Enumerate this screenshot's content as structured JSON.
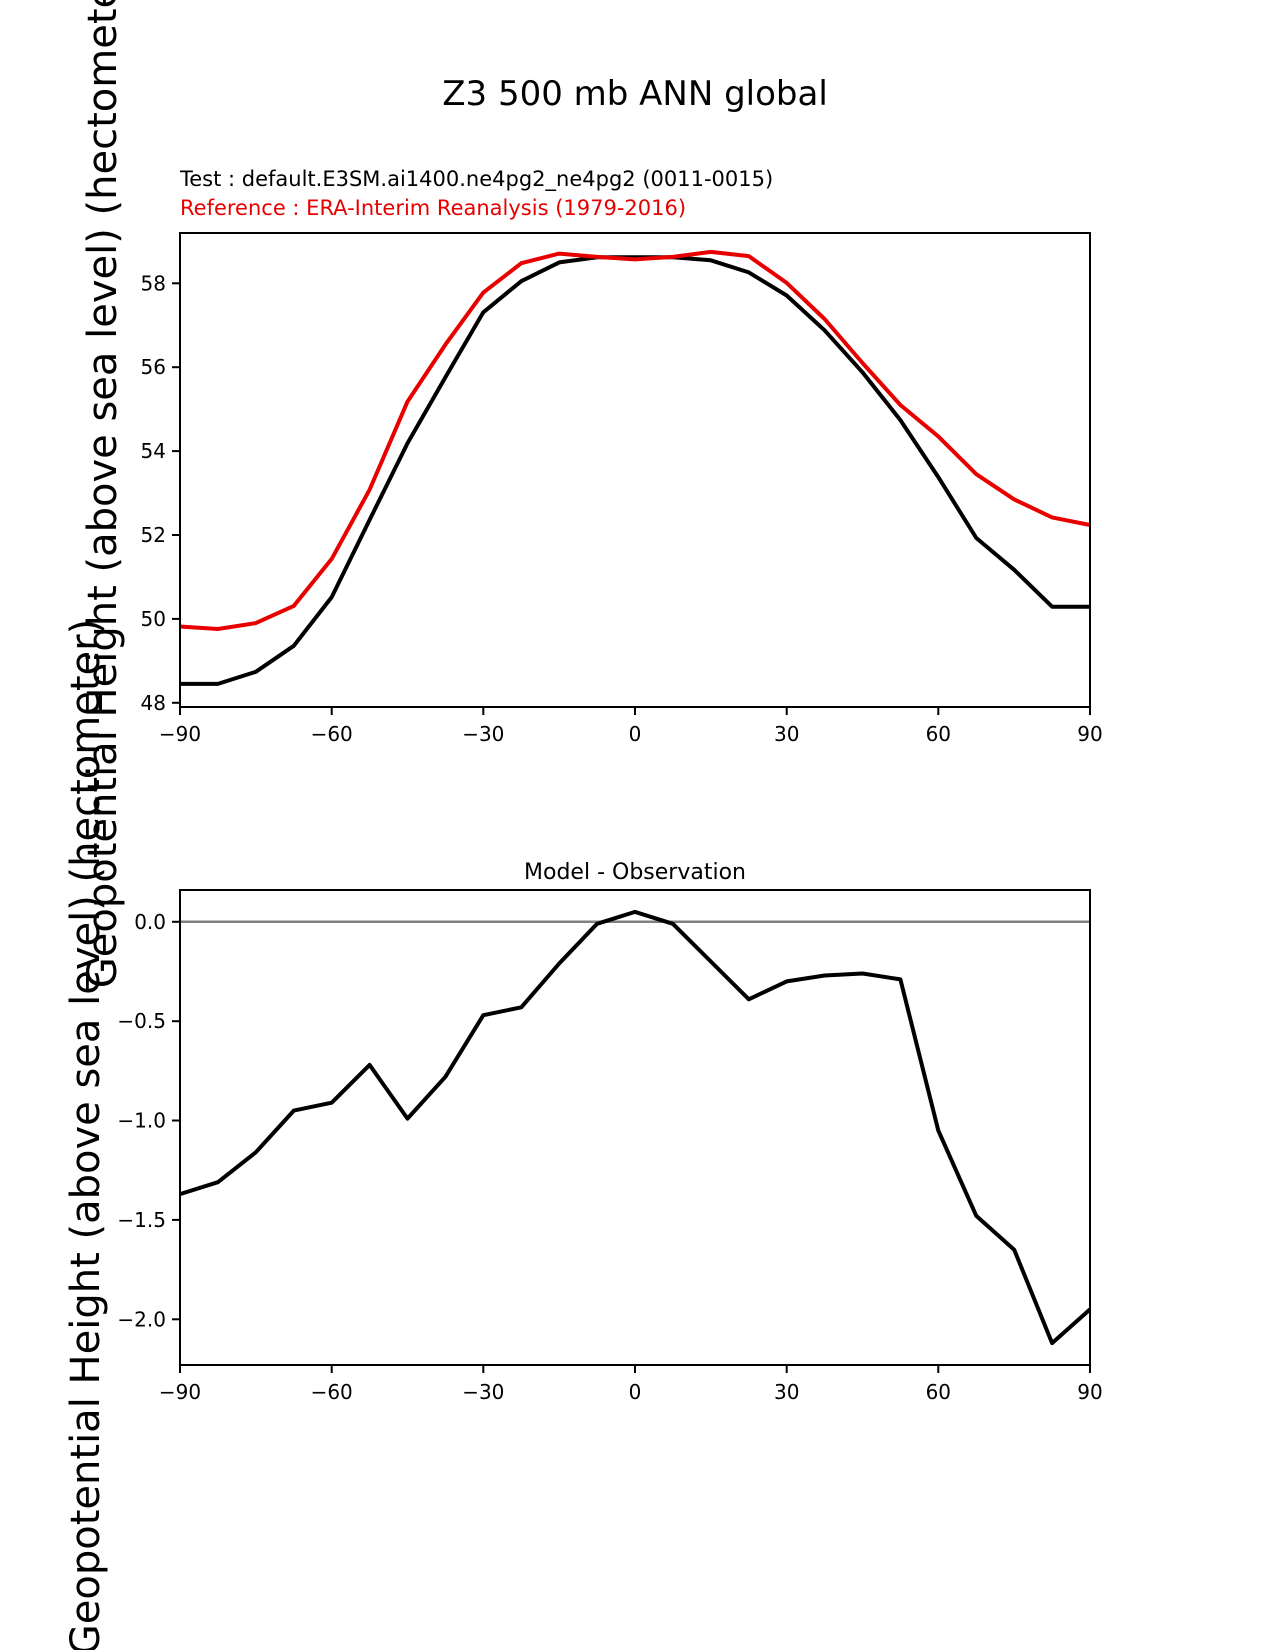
{
  "page": {
    "title": "Z3 500 mb ANN global",
    "legend": {
      "test": "Test : default.E3SM.ai1400.ne4pg2_ne4pg2 (0011-0015)",
      "reference": "Reference : ERA-Interim Reanalysis (1979-2016)"
    },
    "colors": {
      "test": "#000000",
      "reference": "#e80000",
      "zero_line": "#808080",
      "axis": "#000000"
    }
  },
  "chart_data": [
    {
      "type": "line",
      "title": "Z3 500 mb ANN global",
      "xlabel": "",
      "ylabel": "Geopotential Height (above sea level) (hectometer)",
      "xlim": [
        -90,
        90
      ],
      "ylim": [
        47.9,
        59.2
      ],
      "grid": false,
      "legend_position": "above-left-as-text",
      "xticks": [
        -90,
        -60,
        -30,
        0,
        30,
        60,
        90
      ],
      "xtick_labels": [
        "−90",
        "−60",
        "−30",
        "0",
        "30",
        "60",
        "90"
      ],
      "yticks": [
        48,
        50,
        52,
        54,
        56,
        58
      ],
      "ytick_labels": [
        "48",
        "50",
        "52",
        "54",
        "56",
        "58"
      ],
      "x": [
        -90,
        -82.5,
        -75,
        -67.5,
        -60,
        -52.5,
        -45,
        -37.5,
        -30,
        -22.5,
        -15,
        -7.5,
        0,
        7.5,
        15,
        22.5,
        30,
        37.5,
        45,
        52.5,
        60,
        67.5,
        75,
        82.5,
        90
      ],
      "series": [
        {
          "name": "Test: default.E3SM.ai1400.ne4pg2_ne4pg2 (0011-0015)",
          "slug": "test-line",
          "color": "#000000",
          "values": [
            48.45,
            48.45,
            48.74,
            49.36,
            50.52,
            52.36,
            54.19,
            55.76,
            57.31,
            58.05,
            58.5,
            58.62,
            58.62,
            58.62,
            58.55,
            58.26,
            57.71,
            56.88,
            55.88,
            54.74,
            53.38,
            51.93,
            51.17,
            50.29,
            50.29
          ]
        },
        {
          "name": "Reference: ERA-Interim Reanalysis (1979-2016)",
          "slug": "reference-line",
          "color": "#e80000",
          "values": [
            49.82,
            49.76,
            49.9,
            50.31,
            51.43,
            53.08,
            55.18,
            56.54,
            57.78,
            58.48,
            58.71,
            58.63,
            58.57,
            58.63,
            58.75,
            58.65,
            58.01,
            57.15,
            56.1,
            55.1,
            54.35,
            53.45,
            52.85,
            52.42,
            52.24
          ]
        }
      ]
    },
    {
      "type": "line",
      "title": "Model - Observation",
      "xlabel": "",
      "ylabel": "Geopotential Height (above sea level) (hectometer)",
      "xlim": [
        -90,
        90
      ],
      "ylim": [
        -2.23,
        0.16
      ],
      "grid": false,
      "zero_line": true,
      "xticks": [
        -90,
        -60,
        -30,
        0,
        30,
        60,
        90
      ],
      "xtick_labels": [
        "−90",
        "−60",
        "−30",
        "0",
        "30",
        "60",
        "90"
      ],
      "yticks": [
        0,
        -0.5,
        -1,
        -1.5,
        -2
      ],
      "ytick_labels": [
        "0.0",
        "−0.5",
        "−1.0",
        "−1.5",
        "−2.0"
      ],
      "x": [
        -90,
        -82.5,
        -75,
        -67.5,
        -60,
        -52.5,
        -45,
        -37.5,
        -30,
        -22.5,
        -15,
        -7.5,
        0,
        7.5,
        15,
        22.5,
        30,
        37.5,
        45,
        52.5,
        60,
        67.5,
        75,
        82.5,
        90
      ],
      "series": [
        {
          "name": "Model - Observation",
          "slug": "difference-line",
          "color": "#000000",
          "values": [
            -1.37,
            -1.31,
            -1.16,
            -0.95,
            -0.91,
            -0.72,
            -0.99,
            -0.78,
            -0.47,
            -0.43,
            -0.21,
            -0.01,
            0.05,
            -0.01,
            -0.2,
            -0.39,
            -0.3,
            -0.27,
            -0.26,
            -0.29,
            -1.05,
            -1.48,
            -1.65,
            -2.12,
            -1.95
          ]
        }
      ]
    }
  ]
}
